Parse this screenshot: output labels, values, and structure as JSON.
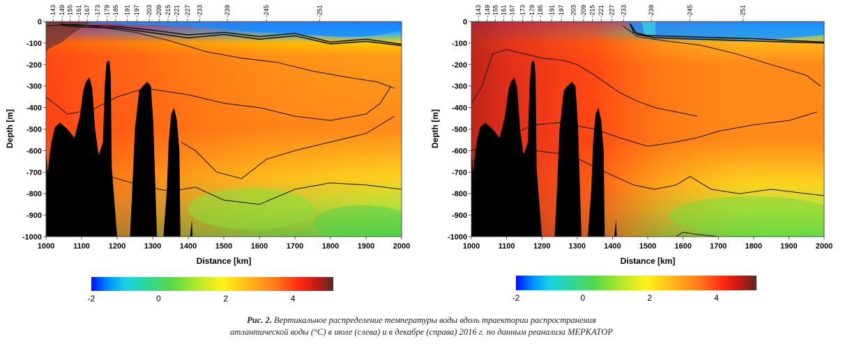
{
  "chart_data": [
    {
      "type": "heatmap",
      "panel": "left",
      "xlabel": "Distance [km]",
      "ylabel": "Depth [m]",
      "xlim": [
        1000,
        2000
      ],
      "ylim": [
        -1000,
        0
      ],
      "xticks": [
        1000,
        1100,
        1200,
        1300,
        1400,
        1500,
        1600,
        1700,
        1800,
        1900,
        2000
      ],
      "yticks": [
        0,
        -100,
        -200,
        -300,
        -400,
        -500,
        -600,
        -700,
        -800,
        -900,
        -1000
      ],
      "stations": [
        {
          "label": "-143",
          "x": 1020
        },
        {
          "label": "-149",
          "x": 1045
        },
        {
          "label": "-155",
          "x": 1068
        },
        {
          "label": "-161",
          "x": 1092
        },
        {
          "label": "-167",
          "x": 1116
        },
        {
          "label": "-173",
          "x": 1145
        },
        {
          "label": "-179",
          "x": 1172
        },
        {
          "label": "-185",
          "x": 1196
        },
        {
          "label": "-191",
          "x": 1228
        },
        {
          "label": "-197",
          "x": 1255
        },
        {
          "label": "-203",
          "x": 1290
        },
        {
          "label": "-209",
          "x": 1318
        },
        {
          "label": "-215",
          "x": 1343
        },
        {
          "label": "-221",
          "x": 1368
        },
        {
          "label": "-227",
          "x": 1398
        },
        {
          "label": "-233",
          "x": 1432
        },
        {
          "label": "-239",
          "x": 1510
        },
        {
          "label": "-245",
          "x": 1620
        },
        {
          "label": "-251",
          "x": 1770
        }
      ],
      "bathymetry": [
        [
          1000,
          -600
        ],
        [
          1005,
          -700
        ],
        [
          1010,
          -620
        ],
        [
          1015,
          -560
        ],
        [
          1025,
          -490
        ],
        [
          1040,
          -470
        ],
        [
          1060,
          -500
        ],
        [
          1080,
          -540
        ],
        [
          1095,
          -440
        ],
        [
          1105,
          -320
        ],
        [
          1112,
          -280
        ],
        [
          1122,
          -260
        ],
        [
          1130,
          -310
        ],
        [
          1138,
          -500
        ],
        [
          1148,
          -620
        ],
        [
          1160,
          -560
        ],
        [
          1165,
          -300
        ],
        [
          1170,
          -190
        ],
        [
          1178,
          -180
        ],
        [
          1182,
          -250
        ],
        [
          1185,
          -680
        ],
        [
          1200,
          -1000
        ],
        [
          1236,
          -1000
        ],
        [
          1242,
          -800
        ],
        [
          1250,
          -500
        ],
        [
          1262,
          -320
        ],
        [
          1272,
          -300
        ],
        [
          1285,
          -280
        ],
        [
          1295,
          -300
        ],
        [
          1302,
          -480
        ],
        [
          1312,
          -1000
        ],
        [
          1330,
          -1000
        ],
        [
          1340,
          -780
        ],
        [
          1345,
          -560
        ],
        [
          1352,
          -430
        ],
        [
          1360,
          -400
        ],
        [
          1368,
          -460
        ],
        [
          1375,
          -600
        ],
        [
          1378,
          -1000
        ],
        [
          1405,
          -1000
        ],
        [
          1410,
          -920
        ],
        [
          1412,
          -1000
        ]
      ],
      "isotherms": [
        {
          "level": "0.5",
          "points": [
            [
              1040,
              -12
            ],
            [
              1100,
              -18
            ],
            [
              1200,
              -22
            ],
            [
              1300,
              -40
            ],
            [
              1400,
              -62
            ],
            [
              1500,
              -50
            ],
            [
              1600,
              -70
            ],
            [
              1700,
              -55
            ],
            [
              1800,
              -95
            ],
            [
              1900,
              -82
            ],
            [
              2000,
              -105
            ]
          ]
        },
        {
          "level": "1",
          "points": [
            [
              1045,
              -18
            ],
            [
              1110,
              -26
            ],
            [
              1200,
              -30
            ],
            [
              1300,
              -52
            ],
            [
              1400,
              -76
            ],
            [
              1500,
              -60
            ],
            [
              1600,
              -82
            ],
            [
              1700,
              -66
            ],
            [
              1800,
              -104
            ],
            [
              1900,
              -92
            ],
            [
              2000,
              -112
            ]
          ]
        },
        {
          "level": "2",
          "points": [
            [
              1000,
              -20
            ],
            [
              1080,
              -12
            ],
            [
              1150,
              -25
            ],
            [
              1250,
              -50
            ],
            [
              1350,
              -90
            ],
            [
              1450,
              -140
            ],
            [
              1550,
              -170
            ],
            [
              1650,
              -190
            ],
            [
              1750,
              -230
            ],
            [
              1850,
              -260
            ],
            [
              1930,
              -280
            ],
            [
              1980,
              -310
            ]
          ]
        },
        {
          "level": "3",
          "points": [
            [
              1000,
              -350
            ],
            [
              1060,
              -430
            ],
            [
              1130,
              -410
            ],
            [
              1200,
              -350
            ],
            [
              1280,
              -310
            ],
            [
              1400,
              -340
            ],
            [
              1500,
              -380
            ],
            [
              1600,
              -400
            ],
            [
              1700,
              -440
            ],
            [
              1800,
              -460
            ],
            [
              1900,
              -430
            ],
            [
              1940,
              -380
            ],
            [
              1970,
              -300
            ]
          ]
        },
        {
          "level": "2 (deep)",
          "points": [
            [
              1380,
              -560
            ],
            [
              1420,
              -600
            ],
            [
              1480,
              -700
            ],
            [
              1550,
              -730
            ],
            [
              1620,
              -640
            ],
            [
              1700,
              -600
            ],
            [
              1800,
              -560
            ],
            [
              1900,
              -520
            ],
            [
              1980,
              -440
            ]
          ]
        },
        {
          "level": "1.5",
          "points": [
            [
              1180,
              -720
            ],
            [
              1260,
              -760
            ],
            [
              1350,
              -790
            ],
            [
              1420,
              -770
            ],
            [
              1500,
              -830
            ],
            [
              1600,
              -850
            ],
            [
              1700,
              -780
            ],
            [
              1800,
              -750
            ],
            [
              1900,
              -760
            ],
            [
              2000,
              -780
            ]
          ]
        }
      ],
      "colorbar": {
        "min": -2,
        "max": 5.2,
        "ticks": [
          -2,
          0,
          2,
          4
        ]
      }
    },
    {
      "type": "heatmap",
      "panel": "right",
      "xlabel": "Distance [km]",
      "ylabel": "Depth [m]",
      "xlim": [
        1000,
        2000
      ],
      "ylim": [
        -1000,
        0
      ],
      "xticks": [
        1000,
        1100,
        1200,
        1300,
        1400,
        1500,
        1600,
        1700,
        1800,
        1900,
        2000
      ],
      "yticks": [
        0,
        -100,
        -200,
        -300,
        -400,
        -500,
        -600,
        -700,
        -800,
        -900,
        -1000
      ],
      "stations": [
        {
          "label": "-143",
          "x": 1020
        },
        {
          "label": "-149",
          "x": 1045
        },
        {
          "label": "-155",
          "x": 1068
        },
        {
          "label": "-161",
          "x": 1092
        },
        {
          "label": "-167",
          "x": 1116
        },
        {
          "label": "-173",
          "x": 1145
        },
        {
          "label": "-179",
          "x": 1172
        },
        {
          "label": "-185",
          "x": 1196
        },
        {
          "label": "-191",
          "x": 1228
        },
        {
          "label": "-197",
          "x": 1255
        },
        {
          "label": "-203",
          "x": 1290
        },
        {
          "label": "-209",
          "x": 1318
        },
        {
          "label": "-215",
          "x": 1343
        },
        {
          "label": "-221",
          "x": 1368
        },
        {
          "label": "-227",
          "x": 1398
        },
        {
          "label": "-233",
          "x": 1432
        },
        {
          "label": "-239",
          "x": 1510
        },
        {
          "label": "-245",
          "x": 1620
        },
        {
          "label": "-251",
          "x": 1770
        }
      ],
      "bathymetry": [
        [
          1000,
          -600
        ],
        [
          1005,
          -700
        ],
        [
          1010,
          -620
        ],
        [
          1015,
          -560
        ],
        [
          1025,
          -490
        ],
        [
          1040,
          -470
        ],
        [
          1060,
          -500
        ],
        [
          1080,
          -540
        ],
        [
          1095,
          -440
        ],
        [
          1105,
          -320
        ],
        [
          1112,
          -280
        ],
        [
          1122,
          -260
        ],
        [
          1130,
          -310
        ],
        [
          1138,
          -500
        ],
        [
          1148,
          -620
        ],
        [
          1160,
          -560
        ],
        [
          1165,
          -300
        ],
        [
          1170,
          -190
        ],
        [
          1178,
          -180
        ],
        [
          1182,
          -250
        ],
        [
          1185,
          -680
        ],
        [
          1200,
          -1000
        ],
        [
          1236,
          -1000
        ],
        [
          1242,
          -800
        ],
        [
          1250,
          -500
        ],
        [
          1262,
          -320
        ],
        [
          1272,
          -300
        ],
        [
          1285,
          -280
        ],
        [
          1295,
          -300
        ],
        [
          1302,
          -480
        ],
        [
          1312,
          -1000
        ],
        [
          1330,
          -1000
        ],
        [
          1340,
          -780
        ],
        [
          1345,
          -560
        ],
        [
          1352,
          -430
        ],
        [
          1360,
          -400
        ],
        [
          1368,
          -460
        ],
        [
          1375,
          -600
        ],
        [
          1378,
          -1000
        ],
        [
          1405,
          -1000
        ],
        [
          1410,
          -920
        ],
        [
          1412,
          -1000
        ]
      ],
      "isotherms": [
        {
          "level": "0.5",
          "points": [
            [
              1450,
              -12
            ],
            [
              1460,
              -50
            ],
            [
              1500,
              -65
            ],
            [
              1600,
              -70
            ],
            [
              1700,
              -75
            ],
            [
              1800,
              -80
            ],
            [
              1900,
              -88
            ],
            [
              2000,
              -95
            ]
          ]
        },
        {
          "level": "1",
          "points": [
            [
              1450,
              -10
            ],
            [
              1470,
              -60
            ],
            [
              1520,
              -75
            ],
            [
              1600,
              -80
            ],
            [
              1700,
              -85
            ],
            [
              1800,
              -90
            ],
            [
              1900,
              -95
            ],
            [
              2000,
              -100
            ]
          ]
        },
        {
          "level": "2",
          "points": [
            [
              1430,
              -20
            ],
            [
              1470,
              -70
            ],
            [
              1550,
              -90
            ],
            [
              1650,
              -110
            ],
            [
              1750,
              -150
            ],
            [
              1850,
              -200
            ],
            [
              1950,
              -250
            ],
            [
              1990,
              -300
            ]
          ]
        },
        {
          "level": "4",
          "points": [
            [
              1000,
              -380
            ],
            [
              1030,
              -300
            ],
            [
              1050,
              -200
            ],
            [
              1060,
              -150
            ],
            [
              1100,
              -130
            ],
            [
              1200,
              -170
            ],
            [
              1260,
              -180
            ],
            [
              1300,
              -200
            ],
            [
              1350,
              -250
            ],
            [
              1420,
              -330
            ],
            [
              1470,
              -370
            ],
            [
              1520,
              -400
            ],
            [
              1580,
              -420
            ],
            [
              1640,
              -440
            ]
          ]
        },
        {
          "level": "3",
          "points": [
            [
              1000,
              -600
            ],
            [
              1060,
              -560
            ],
            [
              1120,
              -520
            ],
            [
              1180,
              -480
            ],
            [
              1250,
              -470
            ],
            [
              1350,
              -500
            ],
            [
              1420,
              -540
            ],
            [
              1500,
              -580
            ],
            [
              1580,
              -560
            ],
            [
              1640,
              -540
            ],
            [
              1700,
              -510
            ],
            [
              1800,
              -480
            ],
            [
              1900,
              -460
            ],
            [
              1980,
              -420
            ]
          ]
        },
        {
          "level": "2 (deep)",
          "points": [
            [
              1000,
              -650
            ],
            [
              1080,
              -640
            ],
            [
              1180,
              -600
            ],
            [
              1280,
              -620
            ],
            [
              1380,
              -700
            ],
            [
              1460,
              -760
            ],
            [
              1520,
              -780
            ],
            [
              1580,
              -760
            ],
            [
              1620,
              -720
            ],
            [
              1680,
              -780
            ],
            [
              1760,
              -800
            ],
            [
              1850,
              -780
            ],
            [
              1950,
              -800
            ],
            [
              2000,
              -810
            ]
          ]
        },
        {
          "level": "1.5",
          "points": [
            [
              1580,
              -1000
            ],
            [
              1600,
              -980
            ],
            [
              1640,
              -990
            ],
            [
              1700,
              -1000
            ]
          ]
        }
      ],
      "colorbar": {
        "min": -2,
        "max": 5.2,
        "ticks": [
          -2,
          0,
          2,
          4
        ]
      }
    }
  ],
  "caption": {
    "label": "Рис. 2.",
    "line1": "Вертикальное распределение температуры воды вдоль траектории распространения",
    "line2": "атлантической воды (°С) в июле (слева) и в декабре (справа) 2016 г. по данным реанализа МЕРКАТОР"
  }
}
